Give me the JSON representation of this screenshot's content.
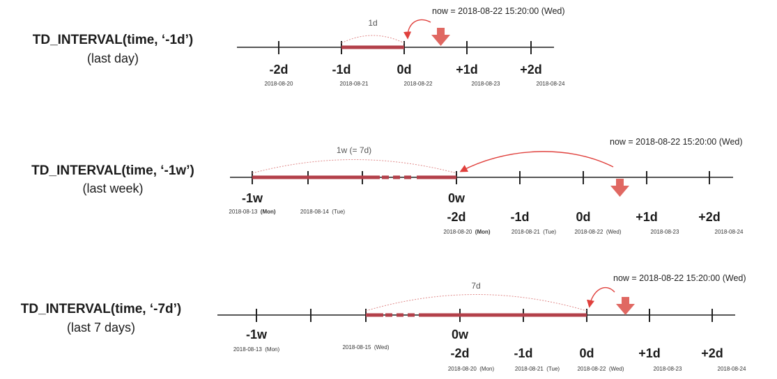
{
  "colors": {
    "bar": "#b3404a",
    "arrow": "#e0403c",
    "axis": "#555555",
    "span_arc": "#e08a8a",
    "now_marker": "#e06862"
  },
  "icons": {
    "now_marker": "down-arrow-icon",
    "pointer": "curved-arrow-icon"
  },
  "panels": [
    {
      "title": "TD_INTERVAL(time, ‘-1d’)",
      "subtitle": "(last day)",
      "now_label": "now = 2018-08-22 15:20:00 (Wed)",
      "span_label": "1d",
      "major_labels": [
        "-2d",
        "-1d",
        "0d",
        "+1d",
        "+2d"
      ],
      "date_labels": [
        "2018-08-20",
        "2018-08-21",
        "2018-08-22",
        "2018-08-23",
        "2018-08-24"
      ]
    },
    {
      "title": "TD_INTERVAL(time, ‘-1w’)",
      "subtitle": "(last week)",
      "now_label": "now = 2018-08-22 15:20:00 (Wed)",
      "span_label": "1w (= 7d)",
      "upper_labels": [
        "-1w",
        "0w"
      ],
      "upper_dates": [
        {
          "date": "2018-08-13",
          "day": "(Mon)",
          "day_bold": true
        },
        {
          "date": "2018-08-14",
          "day": "(Tue)",
          "day_bold": false
        }
      ],
      "major_labels": [
        "-2d",
        "-1d",
        "0d",
        "+1d",
        "+2d"
      ],
      "date_labels": [
        {
          "date": "2018-08-20",
          "day": "(Mon)",
          "day_bold": true
        },
        {
          "date": "2018-08-21",
          "day": "(Tue)",
          "day_bold": false
        },
        {
          "date": "2018-08-22",
          "day": "(Wed)",
          "day_bold": false
        },
        {
          "date": "2018-08-23",
          "day": "",
          "day_bold": false
        },
        {
          "date": "2018-08-24",
          "day": "",
          "day_bold": false
        }
      ]
    },
    {
      "title": "TD_INTERVAL(time, ‘-7d’)",
      "subtitle": "(last 7 days)",
      "now_label": "now = 2018-08-22 15:20:00 (Wed)",
      "span_label": "7d",
      "upper_labels": [
        "-1w",
        "0w"
      ],
      "upper_dates": [
        {
          "date": "2018-08-13",
          "day": "(Mon)",
          "day_bold": false
        },
        {
          "date": "2018-08-15",
          "day": "(Wed)",
          "day_bold": false
        }
      ],
      "major_labels": [
        "-2d",
        "-1d",
        "0d",
        "+1d",
        "+2d"
      ],
      "date_labels": [
        {
          "date": "2018-08-20",
          "day": "(Mon)",
          "day_bold": false
        },
        {
          "date": "2018-08-21",
          "day": "(Tue)",
          "day_bold": false
        },
        {
          "date": "2018-08-22",
          "day": "(Wed)",
          "day_bold": false
        },
        {
          "date": "2018-08-23",
          "day": "",
          "day_bold": false
        },
        {
          "date": "2018-08-24",
          "day": "",
          "day_bold": false
        }
      ]
    }
  ]
}
